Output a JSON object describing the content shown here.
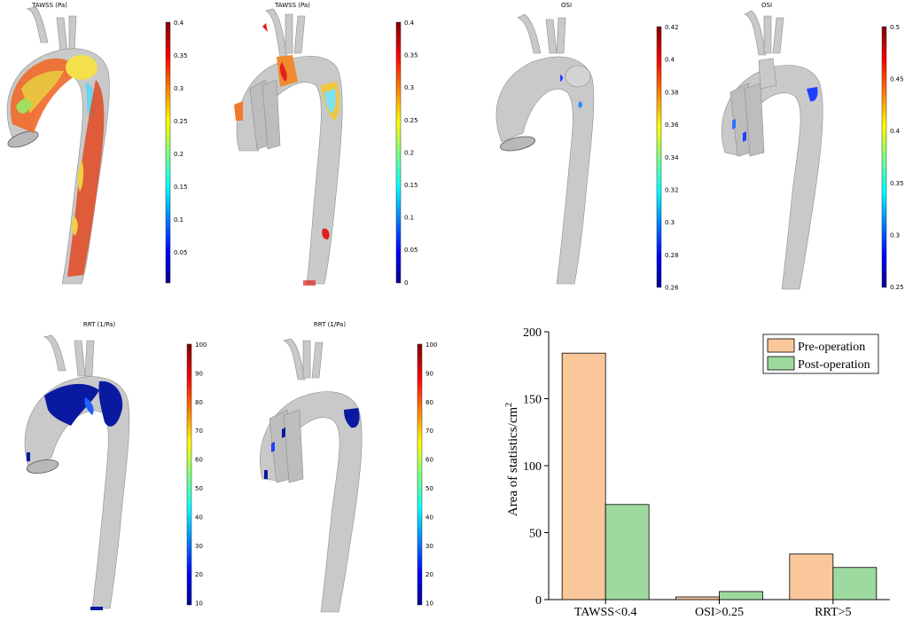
{
  "colors": {
    "vessel": "#c9c9c9",
    "vessel_edge": "#8d8d8d",
    "pre": "#f9c79a",
    "post": "#9ed9a0",
    "bar_edge": "#000000"
  },
  "panels": [
    {
      "title": "TAWSS (Pa)",
      "ticks": [
        "0.4",
        "0.35",
        "0.3",
        "0.25",
        "0.2",
        "0.15",
        "0.1",
        "0.05"
      ]
    },
    {
      "title": "TAWSS (Pa)",
      "ticks": [
        "0.4",
        "0.35",
        "0.3",
        "0.25",
        "0.2",
        "0.15",
        "0.1",
        "0.05",
        "0"
      ]
    },
    {
      "title": "OSI",
      "ticks": [
        "0.42",
        "0.4",
        "0.38",
        "0.36",
        "0.34",
        "0.32",
        "0.3",
        "0.28",
        "0.26"
      ]
    },
    {
      "title": "OSI",
      "ticks": [
        "0.5",
        "0.45",
        "0.4",
        "0.35",
        "0.3",
        "0.25"
      ]
    },
    {
      "title": "RRT (1/Pa)",
      "ticks": [
        "100",
        "90",
        "80",
        "70",
        "60",
        "50",
        "40",
        "30",
        "20",
        "10"
      ]
    },
    {
      "title": "RRT (1/Pa)",
      "ticks": [
        "100",
        "90",
        "80",
        "70",
        "60",
        "50",
        "40",
        "30",
        "20",
        "10"
      ]
    }
  ],
  "chart_data": {
    "type": "bar",
    "categories": [
      "TAWSS<0.4",
      "OSI>0.25",
      "RRT>5"
    ],
    "series": [
      {
        "name": "Pre-operation",
        "values": [
          184,
          2,
          34
        ]
      },
      {
        "name": "Post-operation",
        "values": [
          71,
          6,
          24
        ]
      }
    ],
    "ylabel": "Area of statistics/cm",
    "ylabel_sup": "2",
    "ylim": [
      0,
      200
    ],
    "yticks": [
      "0",
      "50",
      "100",
      "150",
      "200"
    ],
    "legend_position": "top-right"
  }
}
